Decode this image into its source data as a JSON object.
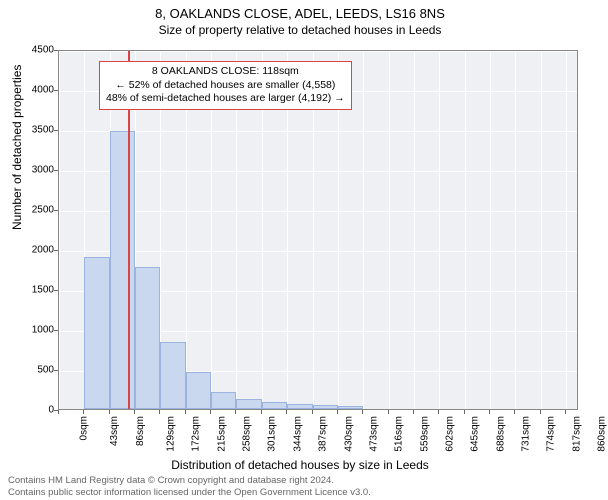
{
  "title_main": "8, OAKLANDS CLOSE, ADEL, LEEDS, LS16 8NS",
  "title_sub": "Size of property relative to detached houses in Leeds",
  "y_axis_label": "Number of detached properties",
  "x_axis_label": "Distribution of detached houses by size in Leeds",
  "footer_line1": "Contains HM Land Registry data © Crown copyright and database right 2024.",
  "footer_line2": "Contains public sector information licensed under the Open Government Licence v3.0.",
  "chart": {
    "type": "histogram",
    "ylim": [
      0,
      4500
    ],
    "xlim": [
      0,
      882
    ],
    "y_ticks": [
      0,
      500,
      1000,
      1500,
      2000,
      2500,
      3000,
      3500,
      4000,
      4500
    ],
    "x_ticks": [
      0,
      43,
      86,
      129,
      172,
      215,
      258,
      301,
      344,
      387,
      430,
      473,
      516,
      559,
      602,
      645,
      688,
      731,
      774,
      817,
      860
    ],
    "x_tick_unit": "sqm",
    "plot_bg": "#eef0f4",
    "grid_color": "#ffffff",
    "bar_fill": "#c9d7ef",
    "bar_border": "#9bb3df",
    "marker_color": "#d94545",
    "marker_value": 118,
    "bars": [
      {
        "x0": 0,
        "x1": 43,
        "count": 0
      },
      {
        "x0": 43,
        "x1": 86,
        "count": 1900
      },
      {
        "x0": 86,
        "x1": 129,
        "count": 3480
      },
      {
        "x0": 129,
        "x1": 172,
        "count": 1770
      },
      {
        "x0": 172,
        "x1": 215,
        "count": 840
      },
      {
        "x0": 215,
        "x1": 258,
        "count": 460
      },
      {
        "x0": 258,
        "x1": 301,
        "count": 210
      },
      {
        "x0": 301,
        "x1": 344,
        "count": 120
      },
      {
        "x0": 344,
        "x1": 387,
        "count": 90
      },
      {
        "x0": 387,
        "x1": 430,
        "count": 60
      },
      {
        "x0": 430,
        "x1": 473,
        "count": 50
      },
      {
        "x0": 473,
        "x1": 516,
        "count": 40
      }
    ],
    "annotation": {
      "line1": "8 OAKLANDS CLOSE: 118sqm",
      "line2": "← 52% of detached houses are smaller (4,558)",
      "line3": "48% of semi-detached houses are larger (4,192) →"
    }
  }
}
